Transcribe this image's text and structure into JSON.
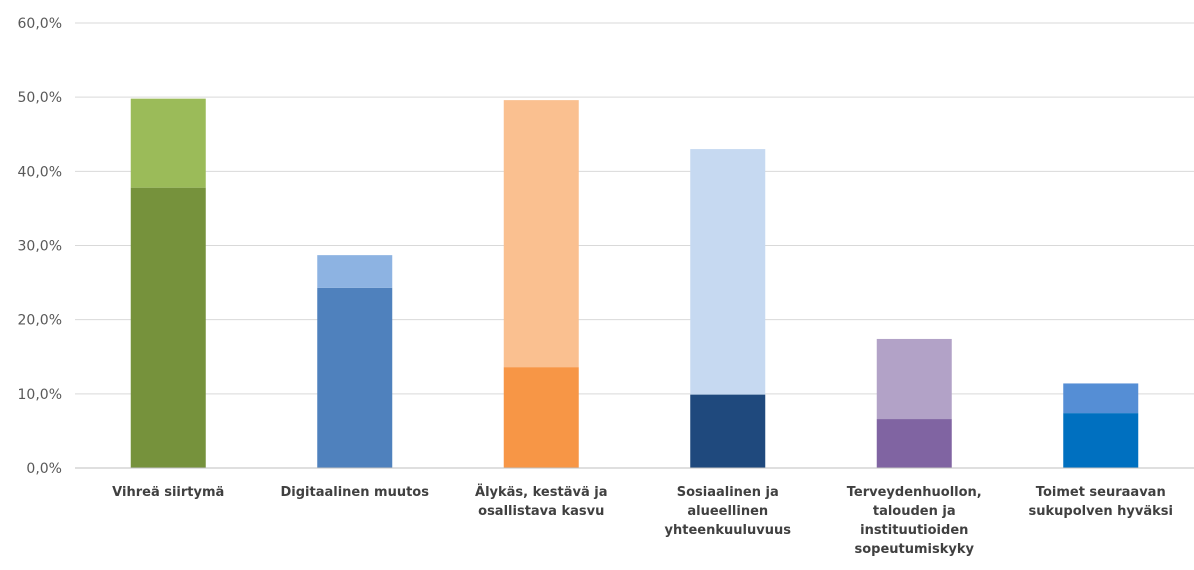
{
  "chart_data": {
    "type": "bar",
    "stacked": true,
    "categories": [
      [
        "Vihreä siirtymä"
      ],
      [
        "Digitaalinen muutos"
      ],
      [
        "Älykäs, kestävä ja",
        "osallistava kasvu"
      ],
      [
        "Sosiaalinen ja",
        "alueellinen",
        "yhteenkuuluvuus"
      ],
      [
        "Terveydenhuollon,",
        "talouden ja",
        "instituutioiden",
        "sopeutumiskyky"
      ],
      [
        "Toimet seuraavan",
        "sukupolven hyväksi"
      ]
    ],
    "series": [
      {
        "values": [
          37.8,
          24.3,
          13.6,
          9.9,
          6.6,
          7.4
        ]
      },
      {
        "values": [
          12.0,
          4.4,
          36.0,
          33.1,
          10.8,
          4.0
        ]
      }
    ],
    "totals": [
      49.8,
      28.7,
      49.6,
      43.0,
      17.4,
      11.4
    ],
    "colors": {
      "base": [
        "#76923c",
        "#4f81bd",
        "#f79646",
        "#1f497d",
        "#8064a2",
        "#0070c0"
      ],
      "top": [
        "#9bbb59",
        "#8db3e2",
        "#fac090",
        "#c6d9f1",
        "#b2a2c7",
        "#558ed5"
      ]
    },
    "yticks": [
      "0,0%",
      "10,0%",
      "20,0%",
      "30,0%",
      "40,0%",
      "50,0%",
      "60,0%"
    ],
    "ylim": [
      0,
      60
    ],
    "grid": true,
    "legend": "none"
  }
}
